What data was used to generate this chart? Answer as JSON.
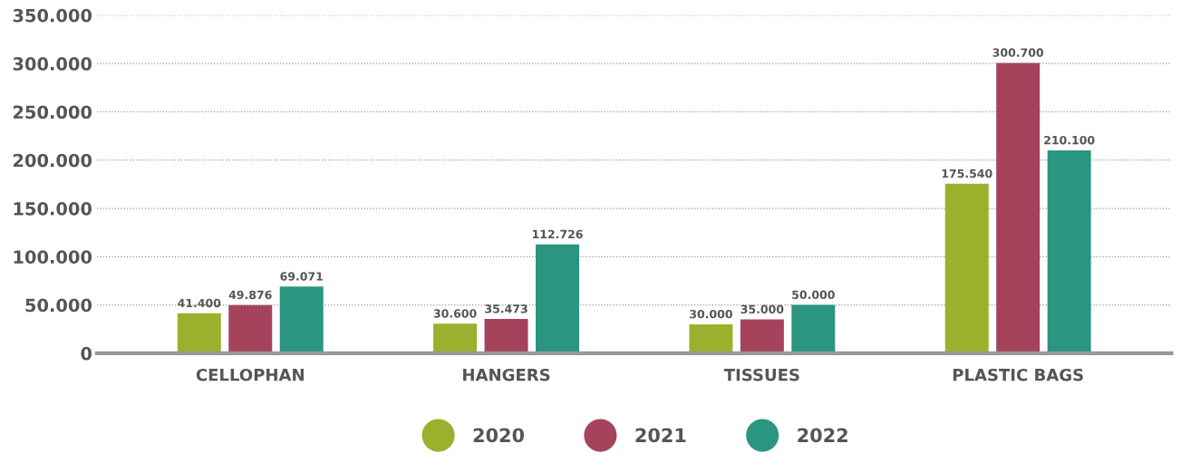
{
  "chart_data": {
    "type": "bar",
    "categories": [
      "CELLOPHAN",
      "HANGERS",
      "TISSUES",
      "PLASTIC BAGS"
    ],
    "series": [
      {
        "name": "2020",
        "color": "#9bb02c",
        "values": [
          41400,
          30600,
          30000,
          175540
        ],
        "value_labels": [
          "41.400",
          "30.600",
          "30.000",
          "175.540"
        ]
      },
      {
        "name": "2021",
        "color": "#a6435c",
        "values": [
          49876,
          35473,
          35000,
          300700
        ],
        "value_labels": [
          "49.876",
          "35.473",
          "35.000",
          "300.700"
        ]
      },
      {
        "name": "2022",
        "color": "#2a9580",
        "values": [
          69071,
          112726,
          50000,
          210100
        ],
        "value_labels": [
          "69.071",
          "112.726",
          "50.000",
          "210.100"
        ]
      }
    ],
    "ylim": [
      0,
      350000
    ],
    "yticks": [
      {
        "value": 0,
        "label": "0"
      },
      {
        "value": 50000,
        "label": "50.000"
      },
      {
        "value": 100000,
        "label": "100.000"
      },
      {
        "value": 150000,
        "label": "150.000"
      },
      {
        "value": 200000,
        "label": "200.000"
      },
      {
        "value": 250000,
        "label": "250.000"
      },
      {
        "value": 300000,
        "label": "300.000"
      },
      {
        "value": 350000,
        "label": "350.000"
      }
    ],
    "grid": "y",
    "legend": "bottom"
  }
}
